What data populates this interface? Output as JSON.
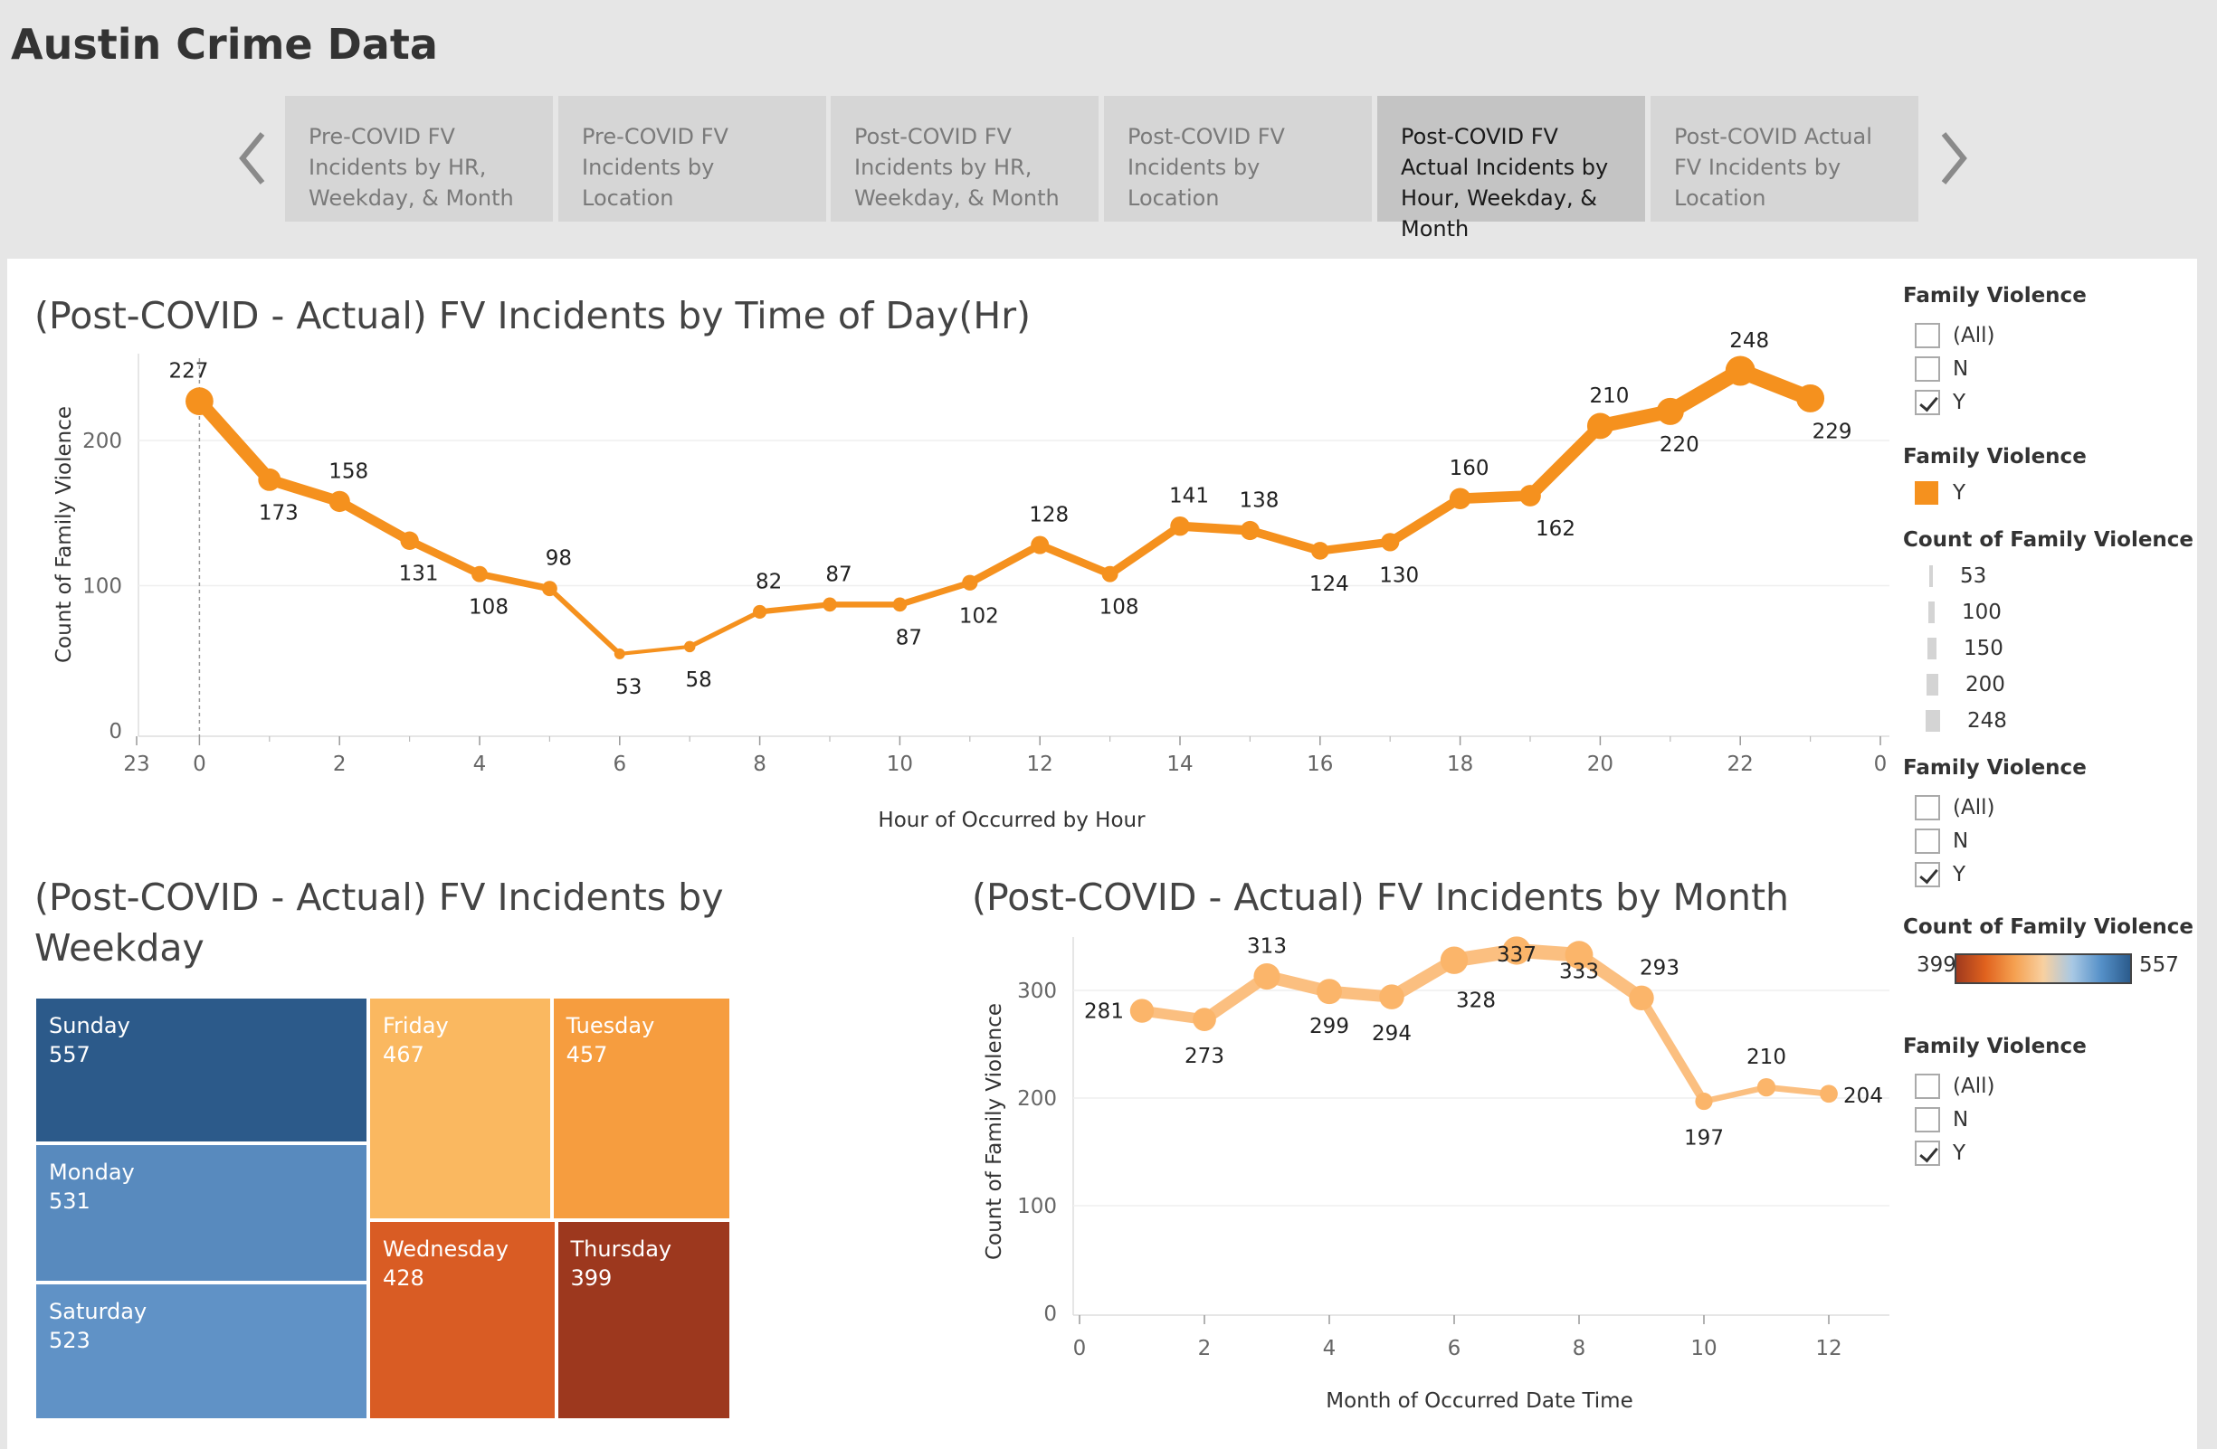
{
  "app": {
    "title": "Austin Crime Data"
  },
  "tabs": [
    {
      "label": "Pre-COVID FV Incidents by HR, Weekday, & Month",
      "active": false
    },
    {
      "label": "Pre-COVID FV Incidents by Location",
      "active": false
    },
    {
      "label": "Post-COVID FV Incidents by HR, Weekday, & Month",
      "active": false
    },
    {
      "label": "Post-COVID FV Incidents by Location",
      "active": false
    },
    {
      "label": "Post-COVID FV Actual Incidents by Hour, Weekday, & Month",
      "active": true
    },
    {
      "label": "Post-COVID Actual FV Incidents by Location",
      "active": false
    }
  ],
  "nav": {
    "prev_icon": "chevron-left-icon",
    "next_icon": "chevron-right-icon"
  },
  "colors": {
    "orange": "#f5911e",
    "light_orange": "#fbbf80"
  },
  "legends": {
    "filter1": {
      "title": "Family Violence",
      "items": [
        {
          "label": "(All)",
          "checked": false
        },
        {
          "label": "N",
          "checked": false
        },
        {
          "label": "Y",
          "checked": true
        }
      ]
    },
    "color": {
      "title": "Family Violence",
      "items": [
        {
          "label": "Y",
          "color": "#f5911e"
        }
      ]
    },
    "size": {
      "title": "Count of Family Violence",
      "items": [
        "53",
        "100",
        "150",
        "200",
        "248"
      ]
    },
    "filter2": {
      "title": "Family Violence",
      "items": [
        {
          "label": "(All)",
          "checked": false
        },
        {
          "label": "N",
          "checked": false
        },
        {
          "label": "Y",
          "checked": true
        }
      ]
    },
    "gradient": {
      "title": "Count of Family Violence",
      "min": "399",
      "max": "557"
    },
    "filter3": {
      "title": "Family Violence",
      "items": [
        {
          "label": "(All)",
          "checked": false
        },
        {
          "label": "N",
          "checked": false
        },
        {
          "label": "Y",
          "checked": true
        }
      ]
    }
  },
  "chart_data": [
    {
      "type": "line",
      "title": "(Post-COVID - Actual) FV Incidents by Time of Day(Hr)",
      "xlabel": "Hour of Occurred by Hour",
      "ylabel": "Count of Family Violence",
      "x_ticks": [
        "23",
        "0",
        "2",
        "4",
        "6",
        "8",
        "10",
        "12",
        "14",
        "16",
        "18",
        "20",
        "22",
        "0"
      ],
      "y_ticks": [
        "0",
        "100",
        "200"
      ],
      "ylim": [
        0,
        265
      ],
      "series": [
        {
          "x": [
            0,
            1,
            2,
            3,
            4,
            5,
            6,
            7,
            8,
            9,
            10,
            11,
            12,
            13,
            14,
            15,
            16,
            17,
            18,
            19,
            20,
            21,
            22,
            23
          ],
          "values": [
            227,
            173,
            158,
            131,
            108,
            98,
            53,
            58,
            82,
            87,
            87,
            102,
            128,
            108,
            141,
            138,
            124,
            130,
            160,
            162,
            210,
            220,
            248,
            229
          ],
          "labels": [
            "227",
            "173",
            "158",
            "131",
            "108",
            "98",
            "53",
            "58",
            "82",
            "87",
            "87",
            "102",
            "128",
            "108",
            "141",
            "138",
            "124",
            "130",
            "160",
            "162",
            "210",
            "220",
            "248",
            "229"
          ]
        }
      ]
    },
    {
      "type": "treemap",
      "title": "(Post-COVID - Actual) FV Incidents by Weekday",
      "categories": [
        "Sunday",
        "Monday",
        "Saturday",
        "Friday",
        "Tuesday",
        "Wednesday",
        "Thursday"
      ],
      "values": [
        557,
        531,
        523,
        467,
        457,
        428,
        399
      ],
      "value_labels": [
        "557",
        "531",
        "523",
        "467",
        "457",
        "428",
        "399"
      ]
    },
    {
      "type": "line",
      "title": "(Post-COVID - Actual) FV Incidents by Month",
      "xlabel": "Month of Occurred Date Time",
      "ylabel": "Count of Family Violence",
      "x_ticks": [
        "0",
        "2",
        "4",
        "6",
        "8",
        "10",
        "12"
      ],
      "y_ticks": [
        "0",
        "100",
        "200",
        "300"
      ],
      "ylim": [
        0,
        345
      ],
      "series": [
        {
          "x": [
            1,
            2,
            3,
            4,
            5,
            6,
            7,
            8,
            9,
            10,
            11,
            12
          ],
          "values": [
            281,
            273,
            313,
            299,
            294,
            328,
            337,
            333,
            293,
            197,
            210,
            204
          ],
          "labels": [
            "281",
            "273",
            "313",
            "299",
            "294",
            "328",
            "337",
            "333",
            "293",
            "197",
            "210",
            "204"
          ]
        }
      ]
    }
  ]
}
